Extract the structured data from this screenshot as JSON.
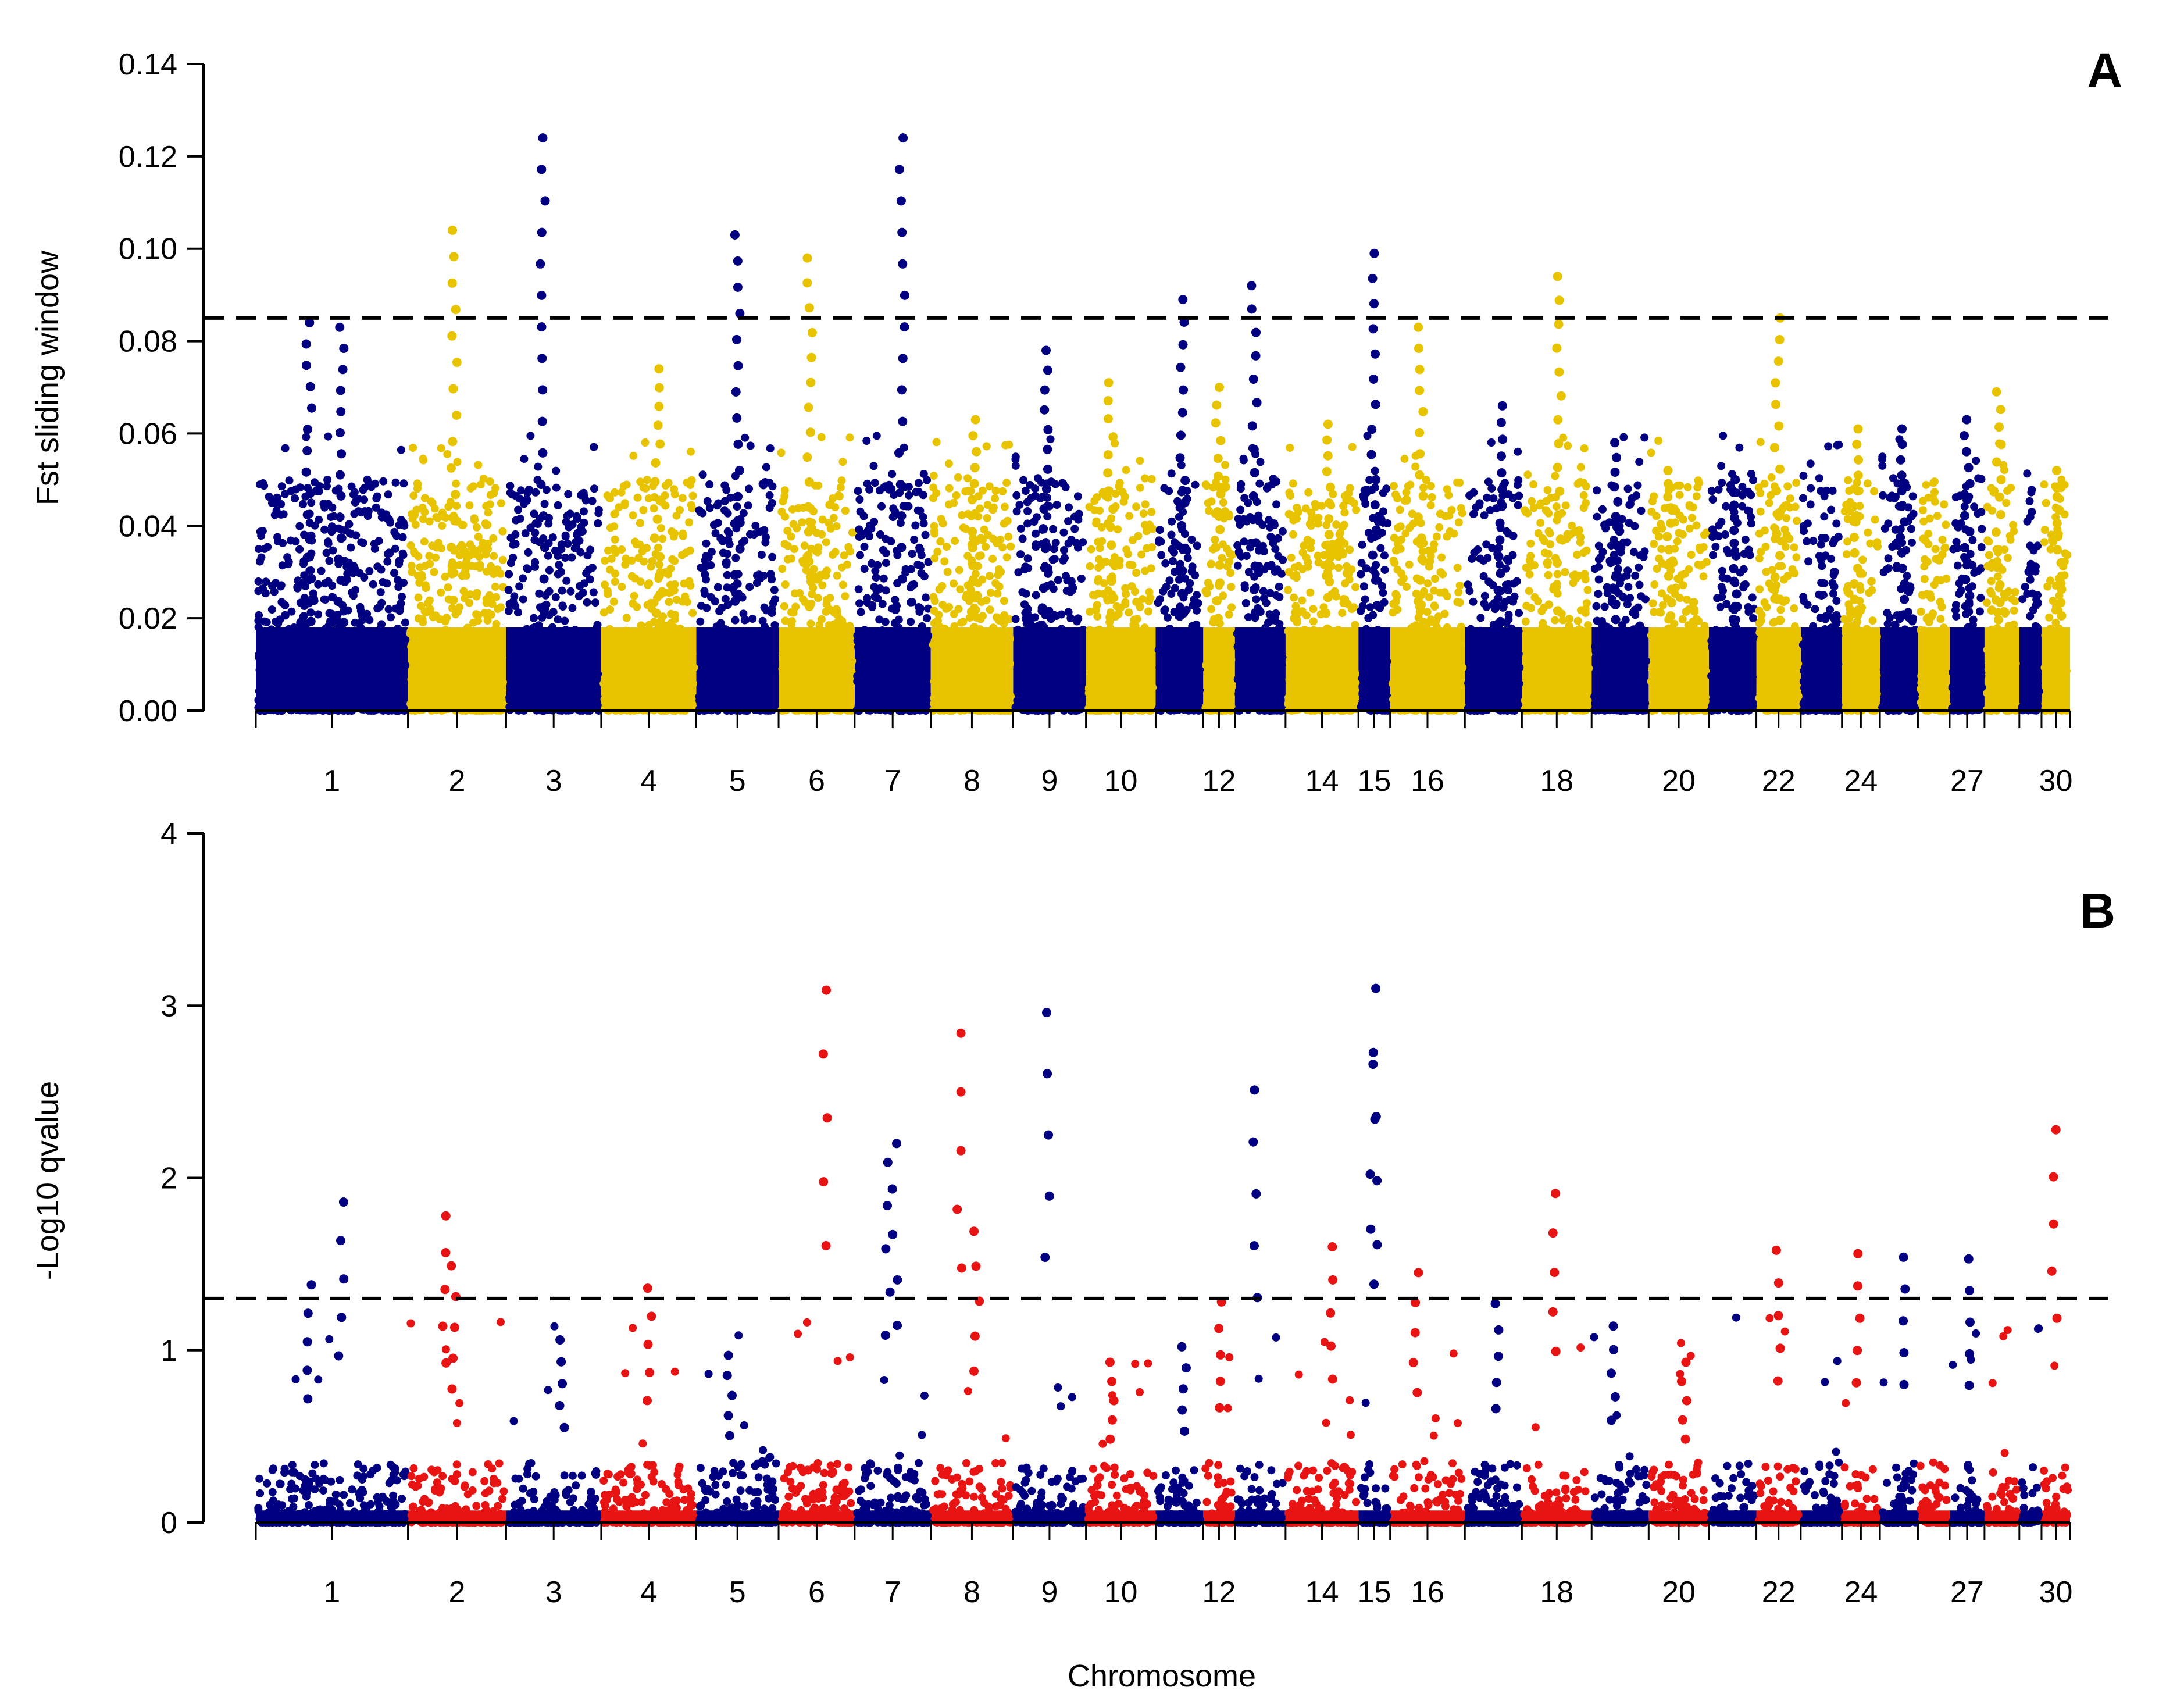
{
  "colors": {
    "navy": "#000080",
    "gold": "#E8C300",
    "red": "#E81414",
    "axis": "#000000"
  },
  "x_axis": {
    "label": "Chromosome",
    "tick_labels": [
      "1",
      "2",
      "3",
      "4",
      "5",
      "6",
      "7",
      "8",
      "9",
      "10",
      "12",
      "14",
      "15",
      "16",
      "18",
      "20",
      "22",
      "24",
      "27",
      "30"
    ]
  },
  "chart_data": [
    {
      "panel": "A",
      "type": "scatter",
      "subtype": "manhattan",
      "xlabel": "",
      "ylabel": "Fst sliding window",
      "ylim": [
        0,
        0.14
      ],
      "yticks": [
        "0.00",
        "0.02",
        "0.04",
        "0.06",
        "0.08",
        "0.10",
        "0.12",
        "0.14"
      ],
      "threshold": 0.085,
      "alternating_colors": [
        "navy",
        "gold"
      ],
      "chromosome_blocks": 30,
      "peaks": [
        {
          "chr": 1,
          "fst": 0.084
        },
        {
          "chr": 1,
          "fst": 0.083
        },
        {
          "chr": 2,
          "fst": 0.104
        },
        {
          "chr": 3,
          "fst": 0.124
        },
        {
          "chr": 4,
          "fst": 0.074
        },
        {
          "chr": 5,
          "fst": 0.103
        },
        {
          "chr": 6,
          "fst": 0.098
        },
        {
          "chr": 7,
          "fst": 0.124
        },
        {
          "chr": 8,
          "fst": 0.063
        },
        {
          "chr": 9,
          "fst": 0.078
        },
        {
          "chr": 10,
          "fst": 0.071
        },
        {
          "chr": 11,
          "fst": 0.089
        },
        {
          "chr": 12,
          "fst": 0.07
        },
        {
          "chr": 13,
          "fst": 0.092
        },
        {
          "chr": 14,
          "fst": 0.062
        },
        {
          "chr": 15,
          "fst": 0.099
        },
        {
          "chr": 16,
          "fst": 0.083
        },
        {
          "chr": 17,
          "fst": 0.066
        },
        {
          "chr": 18,
          "fst": 0.094
        },
        {
          "chr": 19,
          "fst": 0.058
        },
        {
          "chr": 20,
          "fst": 0.052
        },
        {
          "chr": 21,
          "fst": 0.05
        },
        {
          "chr": 22,
          "fst": 0.085
        },
        {
          "chr": 24,
          "fst": 0.061
        },
        {
          "chr": 25,
          "fst": 0.061
        },
        {
          "chr": 27,
          "fst": 0.063
        },
        {
          "chr": 28,
          "fst": 0.069
        },
        {
          "chr": 30,
          "fst": 0.052
        }
      ]
    },
    {
      "panel": "B",
      "type": "scatter",
      "subtype": "manhattan",
      "xlabel": "Chromosome",
      "ylabel": "-Log10 qvalue",
      "ylim": [
        0,
        4
      ],
      "yticks": [
        "0",
        "1",
        "2",
        "3",
        "4"
      ],
      "threshold": 1.3,
      "alternating_colors": [
        "navy",
        "red"
      ],
      "chromosome_blocks": 30,
      "peaks": [
        {
          "chr": 1,
          "q": 1.38
        },
        {
          "chr": 1,
          "q": 1.86
        },
        {
          "chr": 2,
          "q": 1.49
        },
        {
          "chr": 2,
          "q": 1.78
        },
        {
          "chr": 3,
          "q": 1.06
        },
        {
          "chr": 4,
          "q": 1.36
        },
        {
          "chr": 5,
          "q": 0.97
        },
        {
          "chr": 6,
          "q": 3.09
        },
        {
          "chr": 7,
          "q": 2.2
        },
        {
          "chr": 7,
          "q": 2.09
        },
        {
          "chr": 8,
          "q": 2.84
        },
        {
          "chr": 8,
          "q": 1.69
        },
        {
          "chr": 9,
          "q": 2.96
        },
        {
          "chr": 10,
          "q": 0.93
        },
        {
          "chr": 11,
          "q": 1.02
        },
        {
          "chr": 12,
          "q": 1.28
        },
        {
          "chr": 13,
          "q": 2.51
        },
        {
          "chr": 14,
          "q": 1.6
        },
        {
          "chr": 15,
          "q": 3.1
        },
        {
          "chr": 15,
          "q": 2.66
        },
        {
          "chr": 16,
          "q": 1.45
        },
        {
          "chr": 17,
          "q": 1.27
        },
        {
          "chr": 18,
          "q": 1.91
        },
        {
          "chr": 19,
          "q": 1.14
        },
        {
          "chr": 20,
          "q": 0.93
        },
        {
          "chr": 22,
          "q": 1.58
        },
        {
          "chr": 24,
          "q": 1.56
        },
        {
          "chr": 25,
          "q": 1.54
        },
        {
          "chr": 27,
          "q": 1.53
        },
        {
          "chr": 30,
          "q": 2.28
        }
      ]
    }
  ]
}
